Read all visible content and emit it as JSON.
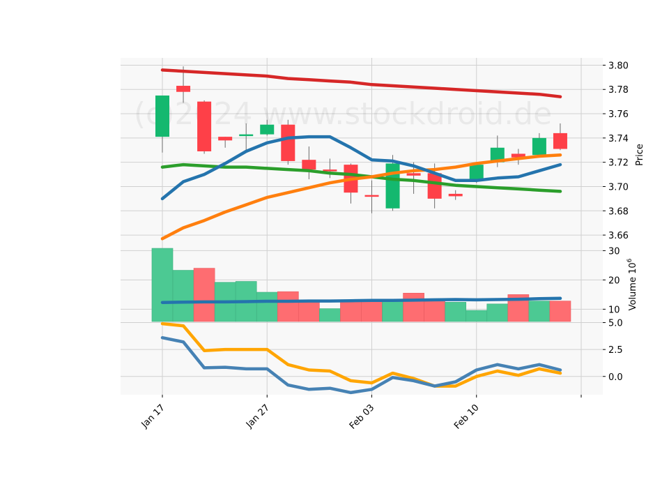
{
  "chart_data": {
    "type": "candlestick",
    "watermark": "(c)2024 www.stockdroid.de",
    "colors": {
      "up": "#14b86f",
      "down": "#fe4048",
      "up_volume": "#4cc993",
      "down_volume": "#fe6d71",
      "ma_short": "#2474ad",
      "ma_mid": "#ff7f0e",
      "ma_long": "#2b9e2b",
      "trend": "#d62727",
      "volume_ma": "#2474ad",
      "osc_line": "#4682b4",
      "osc_signal": "#ffa500",
      "grid": "#d0d0d0",
      "panel_bg": "#f8f8f8"
    },
    "x_tick_labels": [
      {
        "index": 0,
        "label": "Jan 17"
      },
      {
        "index": 5,
        "label": "Jan 27"
      },
      {
        "index": 10,
        "label": "Feb 03"
      },
      {
        "index": 15,
        "label": "Feb 10"
      },
      {
        "index": 20,
        "label": ""
      }
    ],
    "price_panel": {
      "ylabel": "Price",
      "ylim": [
        3.652,
        3.806
      ],
      "yticks": [
        3.66,
        3.68,
        3.7,
        3.72,
        3.74,
        3.76,
        3.78,
        3.8
      ],
      "ytick_labels": [
        "3.66",
        "3.68",
        "3.70",
        "3.72",
        "3.74",
        "3.76",
        "3.78",
        "3.80"
      ],
      "candles": [
        {
          "o": 3.741,
          "h": 3.775,
          "l": 3.728,
          "c": 3.775
        },
        {
          "o": 3.783,
          "h": 3.799,
          "l": 3.769,
          "c": 3.778
        },
        {
          "o": 3.77,
          "h": 3.771,
          "l": 3.727,
          "c": 3.729
        },
        {
          "o": 3.741,
          "h": 3.741,
          "l": 3.732,
          "c": 3.738
        },
        {
          "o": 3.742,
          "h": 3.752,
          "l": 3.73,
          "c": 3.743
        },
        {
          "o": 3.743,
          "h": 3.755,
          "l": 3.742,
          "c": 3.751
        },
        {
          "o": 3.751,
          "h": 3.755,
          "l": 3.718,
          "c": 3.721
        },
        {
          "o": 3.722,
          "h": 3.733,
          "l": 3.706,
          "c": 3.714
        },
        {
          "o": 3.714,
          "h": 3.723,
          "l": 3.707,
          "c": 3.713
        },
        {
          "o": 3.718,
          "h": 3.719,
          "l": 3.686,
          "c": 3.695
        },
        {
          "o": 3.693,
          "h": 3.705,
          "l": 3.678,
          "c": 3.692
        },
        {
          "o": 3.682,
          "h": 3.726,
          "l": 3.68,
          "c": 3.719
        },
        {
          "o": 3.711,
          "h": 3.72,
          "l": 3.694,
          "c": 3.709
        },
        {
          "o": 3.711,
          "h": 3.719,
          "l": 3.682,
          "c": 3.69
        },
        {
          "o": 3.694,
          "h": 3.697,
          "l": 3.689,
          "c": 3.692
        },
        {
          "o": 3.705,
          "h": 3.72,
          "l": 3.703,
          "c": 3.718
        },
        {
          "o": 3.72,
          "h": 3.742,
          "l": 3.716,
          "c": 3.732
        },
        {
          "o": 3.727,
          "h": 3.731,
          "l": 3.718,
          "c": 3.724
        },
        {
          "o": 3.726,
          "h": 3.744,
          "l": 3.725,
          "c": 3.74
        },
        {
          "o": 3.744,
          "h": 3.752,
          "l": 3.73,
          "c": 3.731
        }
      ],
      "lines": [
        {
          "key": "ma_short",
          "values": [
            3.69,
            3.704,
            3.71,
            3.719,
            3.729,
            3.736,
            3.74,
            3.741,
            3.741,
            3.732,
            3.722,
            3.721,
            3.717,
            3.711,
            3.705,
            3.705,
            3.707,
            3.708,
            3.713,
            3.718
          ]
        },
        {
          "key": "ma_mid",
          "values": [
            3.657,
            3.666,
            3.672,
            3.679,
            3.685,
            3.691,
            3.695,
            3.699,
            3.703,
            3.706,
            3.708,
            3.711,
            3.713,
            3.714,
            3.716,
            3.719,
            3.721,
            3.723,
            3.725,
            3.726
          ]
        },
        {
          "key": "ma_long",
          "values": [
            3.716,
            3.718,
            3.717,
            3.716,
            3.716,
            3.715,
            3.714,
            3.713,
            3.711,
            3.71,
            3.708,
            3.706,
            3.705,
            3.703,
            3.701,
            3.7,
            3.699,
            3.698,
            3.697,
            3.696
          ]
        },
        {
          "key": "trend",
          "values": [
            3.796,
            3.795,
            3.794,
            3.793,
            3.792,
            3.791,
            3.789,
            3.788,
            3.787,
            3.786,
            3.784,
            3.783,
            3.782,
            3.781,
            3.78,
            3.779,
            3.778,
            3.777,
            3.776,
            3.774
          ]
        }
      ]
    },
    "volume_panel": {
      "ylabel": "Volume",
      "scale_label": "10",
      "scale_exponent": "6",
      "ylim": [
        5.8,
        32.0
      ],
      "yticks": [
        10,
        20,
        30
      ],
      "ytick_labels": [
        "10",
        "20",
        "30"
      ],
      "values": [
        30.8,
        23.3,
        24.0,
        19.2,
        19.5,
        15.8,
        16.0,
        12.6,
        10.2,
        12.8,
        12.8,
        12.8,
        15.5,
        12.6,
        12.4,
        9.6,
        11.8,
        15.0,
        12.8,
        12.8
      ],
      "up": [
        true,
        true,
        false,
        true,
        true,
        true,
        false,
        false,
        true,
        false,
        false,
        true,
        false,
        false,
        true,
        true,
        true,
        false,
        true,
        false
      ],
      "ma": [
        12.3,
        12.4,
        12.5,
        12.5,
        12.6,
        12.7,
        12.7,
        12.8,
        12.8,
        12.9,
        13.0,
        13.0,
        13.1,
        13.2,
        13.3,
        13.2,
        13.3,
        13.4,
        13.6,
        13.7
      ]
    },
    "oscillator_panel": {
      "ylim": [
        -1.7,
        5.1
      ],
      "yticks": [
        0.0,
        2.5,
        5.0
      ],
      "ytick_labels": [
        "0.0",
        "2.5",
        "5.0"
      ],
      "line": [
        3.6,
        3.2,
        0.8,
        0.85,
        0.7,
        0.7,
        -0.8,
        -1.2,
        -1.1,
        -1.5,
        -1.2,
        -0.1,
        -0.4,
        -0.9,
        -0.5,
        0.6,
        1.1,
        0.7,
        1.1,
        0.6
      ],
      "signal": [
        4.9,
        4.7,
        2.4,
        2.5,
        2.5,
        2.5,
        1.1,
        0.6,
        0.5,
        -0.4,
        -0.6,
        0.3,
        -0.2,
        -0.9,
        -0.9,
        0.0,
        0.5,
        0.1,
        0.7,
        0.3
      ]
    }
  }
}
